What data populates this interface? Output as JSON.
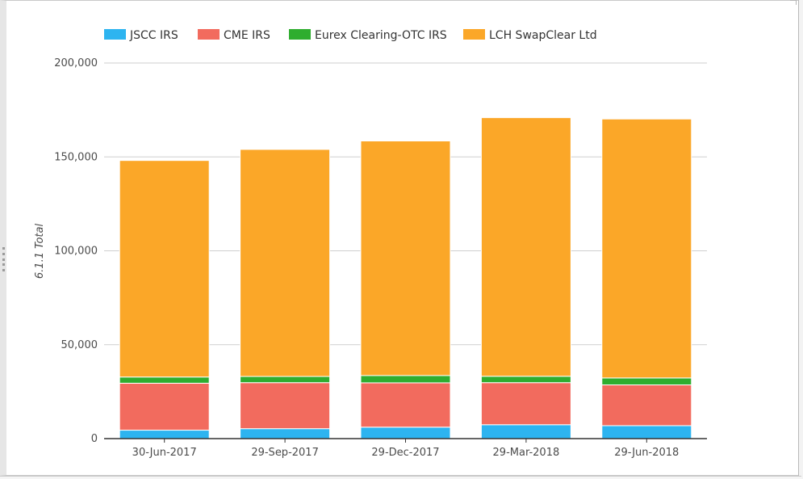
{
  "chart_data": {
    "type": "bar",
    "stacked": true,
    "categories": [
      "30-Jun-2017",
      "29-Sep-2017",
      "29-Dec-2017",
      "29-Mar-2018",
      "29-Jun-2018"
    ],
    "series": [
      {
        "name": "JSCC IRS",
        "color": "#2db4f0",
        "values": [
          4500,
          5300,
          6100,
          7400,
          6900
        ]
      },
      {
        "name": "CME IRS",
        "color": "#f26b5e",
        "values": [
          25000,
          24500,
          23600,
          22400,
          21700
        ]
      },
      {
        "name": "Eurex Clearing-OTC IRS",
        "color": "#2fad2f",
        "values": [
          3300,
          3300,
          3900,
          3400,
          3700
        ]
      },
      {
        "name": "LCH SwapClear Ltd",
        "color": "#fba728",
        "values": [
          115300,
          120900,
          124900,
          137700,
          137900
        ]
      }
    ],
    "ylabel": "6.1.1 Total",
    "xlabel": "",
    "ylim": [
      0,
      200000
    ],
    "yticks": [
      "0",
      "50,000",
      "100,000",
      "150,000",
      "200,000"
    ],
    "ytick_values": [
      0,
      50000,
      100000,
      150000,
      200000
    ],
    "grid": true,
    "legend_position": "top"
  }
}
